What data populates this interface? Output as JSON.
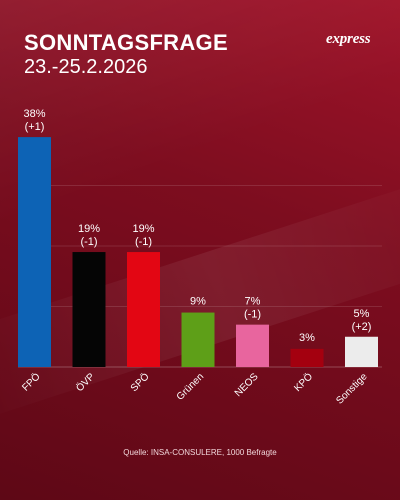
{
  "header": {
    "title": "SONNTAGSFRAGE",
    "date": "23.-25.2.2026",
    "brand": "express"
  },
  "footer": {
    "source": "Quelle: INSA-CONSULERE, 1000 Befragte"
  },
  "chart_data": {
    "type": "bar",
    "categories": [
      "FPÖ",
      "ÖVP",
      "SPÖ",
      "Grünen",
      "NEOS",
      "KPÖ",
      "Sonstige"
    ],
    "values": [
      38,
      19,
      19,
      9,
      7,
      3,
      5
    ],
    "value_labels": [
      "38%",
      "19%",
      "19%",
      "9%",
      "7%",
      "3%",
      "5%"
    ],
    "change_labels": [
      "(+1)",
      "(-1)",
      "(-1)",
      "",
      "(-1)",
      "",
      "(+2)"
    ],
    "colors": [
      "#0d63b5",
      "#050505",
      "#e30613",
      "#5e9f18",
      "#e8659e",
      "#a4000f",
      "#ececec"
    ],
    "title": "SONNTAGSFRAGE",
    "ylim": [
      0,
      40
    ],
    "grid": true,
    "tick_label_rotation": -45
  }
}
